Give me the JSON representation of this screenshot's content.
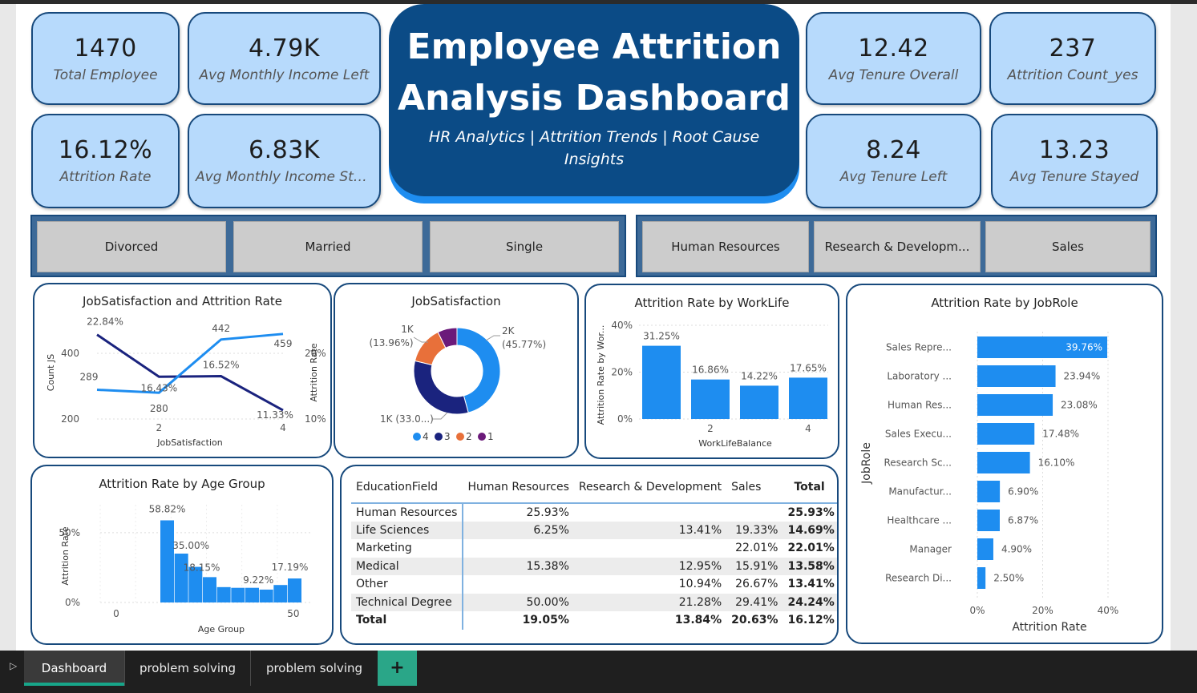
{
  "kpis": {
    "total_employee": {
      "value": "1470",
      "label": "Total Employee"
    },
    "avg_income_left": {
      "value": "4.79K",
      "label": "Avg Monthly Income Left"
    },
    "attrition_rate": {
      "value": "16.12%",
      "label": "Attrition Rate"
    },
    "avg_income_stayed": {
      "value": "6.83K",
      "label": "Avg Monthly Income Stay..."
    },
    "avg_tenure_overall": {
      "value": "12.42",
      "label": "Avg Tenure Overall"
    },
    "attrition_count": {
      "value": "237",
      "label": "Attrition Count_yes"
    },
    "avg_tenure_left": {
      "value": "8.24",
      "label": "Avg Tenure Left"
    },
    "avg_tenure_stayed": {
      "value": "13.23",
      "label": "Avg Tenure Stayed"
    }
  },
  "header": {
    "title_line1": "Employee Attrition",
    "title_line2": "Analysis Dashboard",
    "subtitle": "HR Analytics | Attrition Trends | Root Cause Insights"
  },
  "slicers": {
    "marital": [
      "Divorced",
      "Married",
      "Single"
    ],
    "department": [
      "Human Resources",
      "Research & Developm...",
      "Sales"
    ]
  },
  "colors": {
    "accent": "#1e8df0",
    "dark_blue": "#0b4b86",
    "navy_line": "#1a237e",
    "bar": "#1e8df0",
    "kpi_bg": "#b7dafc",
    "orange": "#e8703a",
    "purple": "#6b1a7a",
    "tab_active": "#17a589"
  },
  "chart_js_attr": {
    "title": "JobSatisfaction and Attrition Rate",
    "xlabel": "JobSatisfaction",
    "ylabel_left": "Count JS",
    "ylabel_right": "Attrition Rate",
    "left_ticks": [
      "400",
      "200"
    ],
    "right_ticks": [
      "20%",
      "10%"
    ],
    "x_ticks": [
      "2",
      "4"
    ]
  },
  "chart_donut": {
    "title": "JobSatisfaction",
    "labels": [
      {
        "text": "2K",
        "sub": "(45.77%)"
      },
      {
        "text": "1K (33.0...)"
      },
      {
        "text": "1K",
        "sub": "(13.96%)"
      }
    ],
    "legend": [
      "4",
      "3",
      "2",
      "1"
    ]
  },
  "chart_worklife": {
    "title": "Attrition Rate by WorkLife",
    "xlabel": "WorkLifeBalance",
    "ylabel": "Attrition Rate by Wor...",
    "y_ticks": [
      "40%",
      "20%",
      "0%"
    ],
    "x_ticks": [
      "2",
      "4"
    ]
  },
  "chart_jobrole": {
    "title": "Attrition Rate by JobRole",
    "xlabel": "Attrition Rate",
    "ylabel": "JobRole",
    "x_ticks": [
      "0%",
      "20%",
      "40%"
    ]
  },
  "chart_age": {
    "title": "Attrition Rate by Age Group",
    "xlabel": "Age Group",
    "ylabel": "Attrition Rate",
    "y_ticks": [
      "50%",
      "0%"
    ],
    "x_ticks": [
      "0",
      "50"
    ]
  },
  "chart_data": [
    {
      "type": "line",
      "title": "JobSatisfaction and Attrition Rate",
      "x": [
        1,
        2,
        3,
        4
      ],
      "xlabel": "JobSatisfaction",
      "series": [
        {
          "name": "Count JS",
          "axis": "left",
          "values": [
            289,
            280,
            442,
            459
          ]
        },
        {
          "name": "Attrition Rate",
          "axis": "right",
          "values": [
            22.84,
            16.43,
            16.52,
            11.33
          ]
        }
      ],
      "data_labels": {
        "Count JS": [
          "289",
          "280",
          "442",
          "459"
        ],
        "Attrition Rate": [
          "22.84%",
          "16.43%",
          "16.52%",
          "11.33%"
        ]
      },
      "ylim_left": [
        150,
        500
      ],
      "ylim_right": [
        8,
        25
      ]
    },
    {
      "type": "pie",
      "title": "JobSatisfaction",
      "categories": [
        "4",
        "3",
        "2",
        "1"
      ],
      "values": [
        45.77,
        33.0,
        13.96,
        7.27
      ]
    },
    {
      "type": "bar",
      "title": "Attrition Rate by WorkLife",
      "categories": [
        "1",
        "2",
        "3",
        "4"
      ],
      "values": [
        31.25,
        16.86,
        14.22,
        17.65
      ],
      "data_labels": [
        "31.25%",
        "16.86%",
        "14.22%",
        "17.65%"
      ],
      "xlabel": "WorkLifeBalance",
      "ylim": [
        0,
        40
      ]
    },
    {
      "type": "bar",
      "orientation": "horizontal",
      "title": "Attrition Rate by JobRole",
      "categories": [
        "Sales Repre...",
        "Laboratory ...",
        "Human Res...",
        "Sales Execu...",
        "Research Sc...",
        "Manufactur...",
        "Healthcare ...",
        "Manager",
        "Research Di..."
      ],
      "values": [
        39.76,
        23.94,
        23.08,
        17.48,
        16.1,
        6.9,
        6.87,
        4.9,
        2.5
      ],
      "data_labels": [
        "39.76%",
        "23.94%",
        "23.08%",
        "17.48%",
        "16.10%",
        "6.90%",
        "6.87%",
        "4.90%",
        "2.50%"
      ],
      "xlabel": "Attrition Rate",
      "ylabel": "JobRole",
      "xlim": [
        0,
        42
      ]
    },
    {
      "type": "bar",
      "title": "Attrition Rate by Age Group",
      "x": [
        18,
        22,
        26,
        30,
        34,
        38,
        42,
        46,
        50,
        54
      ],
      "values": [
        58.82,
        35.0,
        25.5,
        18.15,
        11.0,
        10.5,
        10.5,
        9.22,
        12.5,
        17.19
      ],
      "data_labels": {
        "0": "58.82%",
        "1": "35.00%",
        "3": "18.15%",
        "7": "9.22%",
        "9": "17.19%"
      },
      "xlabel": "Age Group",
      "ylabel": "Attrition Rate",
      "xlim": [
        0,
        60
      ],
      "ylim": [
        0,
        70
      ]
    },
    {
      "type": "table",
      "title": "",
      "columns": [
        "EducationField",
        "Human Resources",
        "Research & Development",
        "Sales",
        "Total"
      ],
      "rows": [
        [
          "Human Resources",
          "25.93%",
          "",
          "",
          "25.93%"
        ],
        [
          "Life Sciences",
          "6.25%",
          "13.41%",
          "19.33%",
          "14.69%"
        ],
        [
          "Marketing",
          "",
          "",
          "22.01%",
          "22.01%"
        ],
        [
          "Medical",
          "15.38%",
          "12.95%",
          "15.91%",
          "13.58%"
        ],
        [
          "Other",
          "",
          "10.94%",
          "26.67%",
          "13.41%"
        ],
        [
          "Technical Degree",
          "50.00%",
          "21.28%",
          "29.41%",
          "24.24%"
        ],
        [
          "Total",
          "19.05%",
          "13.84%",
          "20.63%",
          "16.12%"
        ]
      ]
    }
  ],
  "tabs": [
    "Dashboard",
    "problem solving",
    "problem solving"
  ],
  "add_tab_label": "+"
}
